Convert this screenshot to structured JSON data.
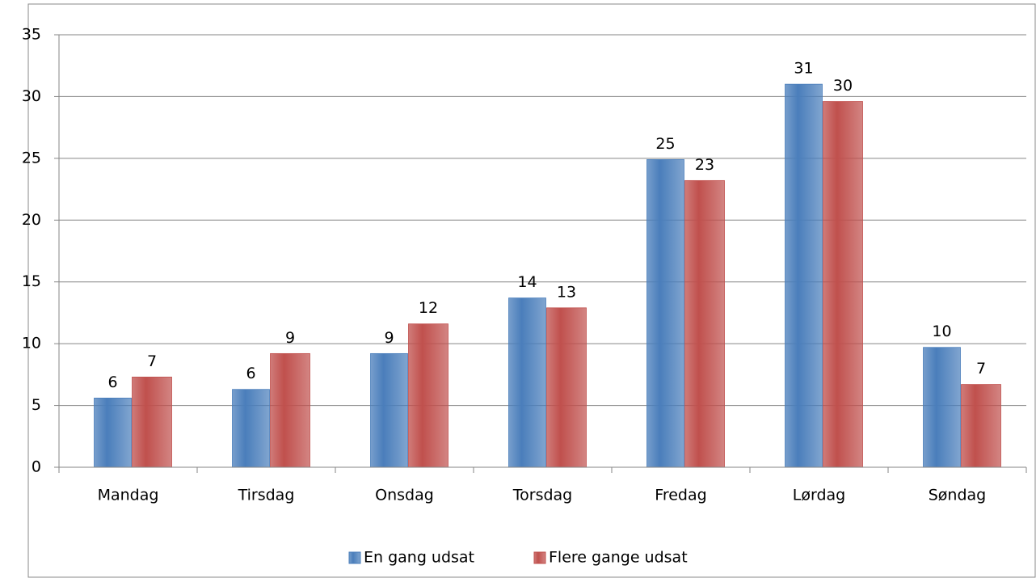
{
  "chart_data": {
    "type": "bar",
    "categories": [
      "Mandag",
      "Tirsdag",
      "Onsdag",
      "Torsdag",
      "Fredag",
      "Lørdag",
      "Søndag"
    ],
    "series": [
      {
        "name": "En gang udsat",
        "color": "#4a7ebb",
        "values": [
          5.6,
          6.3,
          9.2,
          13.7,
          24.9,
          31.0,
          9.7
        ],
        "value_labels": [
          "6",
          "6",
          "9",
          "14",
          "25",
          "31",
          "10"
        ]
      },
      {
        "name": "Flere gange udsat",
        "color": "#c0504d",
        "values": [
          7.3,
          9.2,
          11.6,
          12.9,
          23.2,
          29.6,
          6.7
        ],
        "value_labels": [
          "7",
          "9",
          "12",
          "13",
          "23",
          "30",
          "7"
        ]
      }
    ],
    "ylim": [
      0,
      35
    ],
    "yticks": [
      0,
      5,
      10,
      15,
      20,
      25,
      30,
      35
    ],
    "grid": true,
    "legend": "bottom"
  }
}
